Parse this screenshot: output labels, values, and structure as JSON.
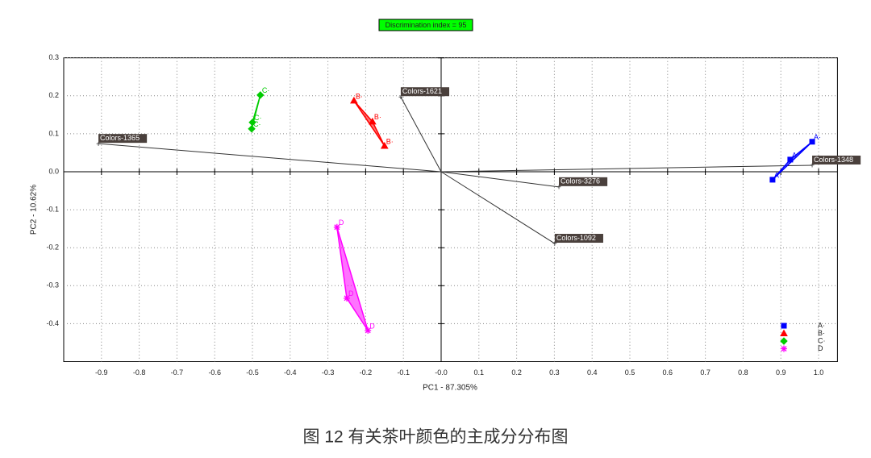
{
  "chart_data": {
    "type": "scatter",
    "title": "Discrimination index = 95",
    "x_label": "PC1 - 87.305%",
    "y_label": "PC2 - 10.62%",
    "caption": "图 12 有关茶叶颜色的主成分分布图",
    "xlim": [
      -1.0,
      1.05
    ],
    "ylim": [
      -0.5,
      0.3
    ],
    "xticks": [
      -0.9,
      -0.8,
      -0.7,
      -0.6,
      -0.5,
      -0.4,
      -0.3,
      -0.2,
      -0.1,
      {
        "value": 0,
        "label": "-0.0"
      },
      0.1,
      0.2,
      0.3,
      0.4,
      0.5,
      0.6,
      0.7,
      0.8,
      0.9,
      {
        "value": 1,
        "label": "1.0"
      }
    ],
    "yticks": [
      0.3,
      0.2,
      0.1,
      {
        "value": 0,
        "label": "0.0"
      },
      -0.1,
      -0.2,
      -0.3,
      -0.4
    ],
    "grid": true,
    "legend": "lower-right",
    "series": [
      {
        "name": "A·",
        "color": "#0000ff",
        "marker": "square",
        "x": [
          0.878,
          0.925,
          0.983
        ],
        "y": [
          -0.021,
          0.032,
          0.079
        ]
      },
      {
        "name": "B·",
        "color": "#ff0000",
        "marker": "triangle",
        "x": [
          -0.231,
          -0.182,
          -0.15
        ],
        "y": [
          0.187,
          0.132,
          0.068
        ]
      },
      {
        "name": "C·",
        "color": "#00cc00",
        "marker": "diamond",
        "x": [
          -0.502,
          -0.5,
          -0.479
        ],
        "y": [
          0.113,
          0.13,
          0.202
        ]
      },
      {
        "name": "D",
        "color": "#ff00ff",
        "marker": "star",
        "x": [
          -0.276,
          -0.25,
          -0.194
        ],
        "y": [
          -0.146,
          -0.333,
          -0.418
        ]
      }
    ],
    "loadings": [
      {
        "label": "Colors-1365",
        "x": -0.908,
        "y": 0.074
      },
      {
        "label": "Colors-1621",
        "x": -0.107,
        "y": 0.197
      },
      {
        "label": "Colors-3276",
        "x": 0.312,
        "y": -0.04
      },
      {
        "label": "Colors-1092",
        "x": 0.301,
        "y": -0.189
      },
      {
        "label": "Colors-1348",
        "x": 0.983,
        "y": 0.017
      }
    ]
  }
}
